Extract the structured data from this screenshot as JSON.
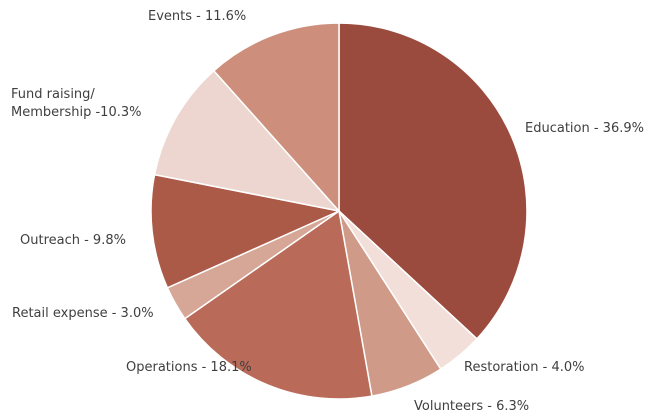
{
  "chart_data": {
    "type": "pie",
    "title": "",
    "start": "12 o'clock",
    "direction": "clockwise",
    "slices": [
      {
        "label_lines": [
          "Education - 36.9%"
        ],
        "value": 36.9,
        "color": "#9b4b3d"
      },
      {
        "label_lines": [
          "Restoration - 4.0%"
        ],
        "value": 4.0,
        "color": "#f3dfd9"
      },
      {
        "label_lines": [
          "Volunteers - 6.3%"
        ],
        "value": 6.3,
        "color": "#cf9a88"
      },
      {
        "label_lines": [
          "Operations - 18.1%"
        ],
        "value": 18.1,
        "color": "#b96a58"
      },
      {
        "label_lines": [
          "Retail expense - 3.0%"
        ],
        "value": 3.0,
        "color": "#d6a696"
      },
      {
        "label_lines": [
          "Outreach - 9.8%"
        ],
        "value": 9.8,
        "color": "#ac5a48"
      },
      {
        "label_lines": [
          "Fund raising/",
          "Membership -10.3%"
        ],
        "value": 10.3,
        "color": "#ecd6cf"
      },
      {
        "label_lines": [
          "Events - 11.6%"
        ],
        "value": 11.6,
        "color": "#cd8f7b"
      }
    ]
  }
}
